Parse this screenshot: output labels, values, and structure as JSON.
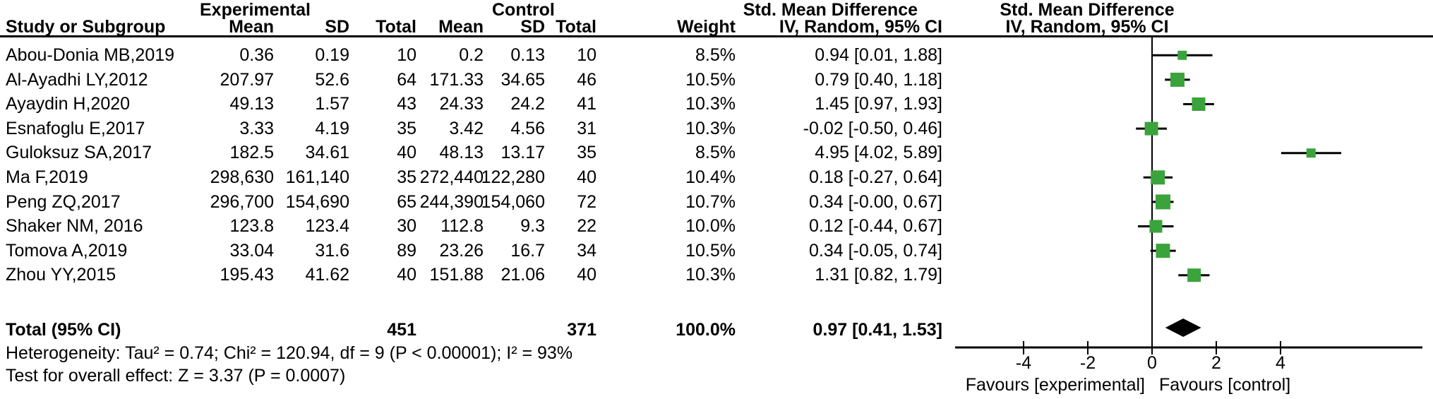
{
  "header": {
    "study_col": "Study or Subgroup",
    "group_experimental": "Experimental",
    "group_control": "Control",
    "mean": "Mean",
    "sd": "SD",
    "total": "Total",
    "weight": "Weight",
    "smd": "Std. Mean Difference",
    "method": "IV, Random, 95% CI"
  },
  "table": {
    "rows": [
      {
        "study": "Abou-Donia MB,2019",
        "exp_mean": "0.36",
        "exp_sd": "0.19",
        "exp_total": "10",
        "ctl_mean": "0.2",
        "ctl_sd": "0.13",
        "ctl_total": "10",
        "weight": "8.5%",
        "ci": "0.94 [0.01, 1.88]"
      },
      {
        "study": "Al-Ayadhi LY,2012",
        "exp_mean": "207.97",
        "exp_sd": "52.6",
        "exp_total": "64",
        "ctl_mean": "171.33",
        "ctl_sd": "34.65",
        "ctl_total": "46",
        "weight": "10.5%",
        "ci": "0.79 [0.40, 1.18]"
      },
      {
        "study": "Ayaydin H,2020",
        "exp_mean": "49.13",
        "exp_sd": "1.57",
        "exp_total": "43",
        "ctl_mean": "24.33",
        "ctl_sd": "24.2",
        "ctl_total": "41",
        "weight": "10.3%",
        "ci": "1.45 [0.97, 1.93]"
      },
      {
        "study": "Esnafoglu E,2017",
        "exp_mean": "3.33",
        "exp_sd": "4.19",
        "exp_total": "35",
        "ctl_mean": "3.42",
        "ctl_sd": "4.56",
        "ctl_total": "31",
        "weight": "10.3%",
        "ci": "-0.02 [-0.50, 0.46]"
      },
      {
        "study": "Guloksuz SA,2017",
        "exp_mean": "182.5",
        "exp_sd": "34.61",
        "exp_total": "40",
        "ctl_mean": "48.13",
        "ctl_sd": "13.17",
        "ctl_total": "35",
        "weight": "8.5%",
        "ci": "4.95 [4.02, 5.89]"
      },
      {
        "study": "Ma F,2019",
        "exp_mean": "298,630",
        "exp_sd": "161,140",
        "exp_total": "35",
        "ctl_mean": "272,440",
        "ctl_sd": "122,280",
        "ctl_total": "40",
        "weight": "10.4%",
        "ci": "0.18 [-0.27, 0.64]"
      },
      {
        "study": "Peng ZQ,2017",
        "exp_mean": "296,700",
        "exp_sd": "154,690",
        "exp_total": "65",
        "ctl_mean": "244,390",
        "ctl_sd": "154,060",
        "ctl_total": "72",
        "weight": "10.7%",
        "ci": "0.34 [-0.00, 0.67]"
      },
      {
        "study": "Shaker NM, 2016",
        "exp_mean": "123.8",
        "exp_sd": "123.4",
        "exp_total": "30",
        "ctl_mean": "112.8",
        "ctl_sd": "9.3",
        "ctl_total": "22",
        "weight": "10.0%",
        "ci": "0.12 [-0.44, 0.67]"
      },
      {
        "study": "Tomova A,2019",
        "exp_mean": "33.04",
        "exp_sd": "31.6",
        "exp_total": "89",
        "ctl_mean": "23.26",
        "ctl_sd": "16.7",
        "ctl_total": "34",
        "weight": "10.5%",
        "ci": "0.34 [-0.05, 0.74]"
      },
      {
        "study": "Zhou YY,2015",
        "exp_mean": "195.43",
        "exp_sd": "41.62",
        "exp_total": "40",
        "ctl_mean": "151.88",
        "ctl_sd": "21.06",
        "ctl_total": "40",
        "weight": "10.3%",
        "ci": "1.31 [0.82, 1.79]"
      }
    ],
    "total": {
      "label": "Total (95% CI)",
      "exp_total": "451",
      "ctl_total": "371",
      "weight": "100.0%",
      "ci": "0.97 [0.41, 1.53]"
    }
  },
  "footnotes": {
    "heterogeneity": "Heterogeneity: Tau² = 0.74; Chi² = 120.94, df = 9 (P < 0.00001); I² = 93%",
    "overall": "Test for overall effect: Z = 3.37 (P = 0.0007)"
  },
  "chart_data": {
    "type": "forest",
    "title": "Std. Mean Difference, IV, Random, 95% CI",
    "x_axis": {
      "ticks": [
        -4,
        -2,
        0,
        2,
        4
      ],
      "min": -6.1,
      "max": 8.4,
      "zero_line": true
    },
    "favours_left": "Favours [experimental]",
    "favours_right": "Favours [control]",
    "marker_color": "#3BA33B",
    "diamond_color": "#000000",
    "studies": [
      {
        "name": "Abou-Donia MB,2019",
        "est": 0.94,
        "lo": 0.01,
        "hi": 1.88,
        "weight_pct": 8.5
      },
      {
        "name": "Al-Ayadhi LY,2012",
        "est": 0.79,
        "lo": 0.4,
        "hi": 1.18,
        "weight_pct": 10.5
      },
      {
        "name": "Ayaydin H,2020",
        "est": 1.45,
        "lo": 0.97,
        "hi": 1.93,
        "weight_pct": 10.3
      },
      {
        "name": "Esnafoglu E,2017",
        "est": -0.02,
        "lo": -0.5,
        "hi": 0.46,
        "weight_pct": 10.3
      },
      {
        "name": "Guloksuz SA,2017",
        "est": 4.95,
        "lo": 4.02,
        "hi": 5.89,
        "weight_pct": 8.5
      },
      {
        "name": "Ma F,2019",
        "est": 0.18,
        "lo": -0.27,
        "hi": 0.64,
        "weight_pct": 10.4
      },
      {
        "name": "Peng ZQ,2017",
        "est": 0.34,
        "lo": 0.0,
        "hi": 0.67,
        "weight_pct": 10.7
      },
      {
        "name": "Shaker NM, 2016",
        "est": 0.12,
        "lo": -0.44,
        "hi": 0.67,
        "weight_pct": 10.0
      },
      {
        "name": "Tomova A,2019",
        "est": 0.34,
        "lo": -0.05,
        "hi": 0.74,
        "weight_pct": 10.5
      },
      {
        "name": "Zhou YY,2015",
        "est": 1.31,
        "lo": 0.82,
        "hi": 1.79,
        "weight_pct": 10.3
      }
    ],
    "total": {
      "name": "Total (95% CI)",
      "est": 0.97,
      "lo": 0.41,
      "hi": 1.53,
      "weight_pct": 100.0
    }
  }
}
